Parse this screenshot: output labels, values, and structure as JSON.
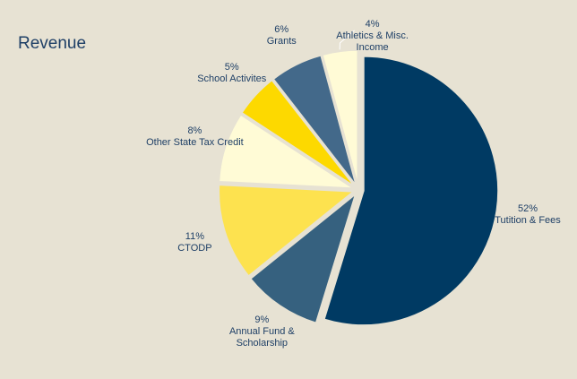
{
  "chart_data": {
    "type": "pie",
    "title": "Revenue",
    "categories": [
      "Tutition & Fees",
      "Annual Fund & Scholarship",
      "CTODP",
      "Other State Tax Credit",
      "School Activites",
      "Grants",
      "Athletics & Misc. Income"
    ],
    "values": [
      52,
      9,
      11,
      8,
      5,
      6,
      4
    ],
    "value_labels": [
      "52%",
      "9%",
      "11%",
      "8%",
      "5%",
      "6%",
      "4%"
    ],
    "colors": [
      "#003a63",
      "#36617f",
      "#fde24f",
      "#fffbd6",
      "#fdd900",
      "#43698a",
      "#fffbd6"
    ]
  }
}
